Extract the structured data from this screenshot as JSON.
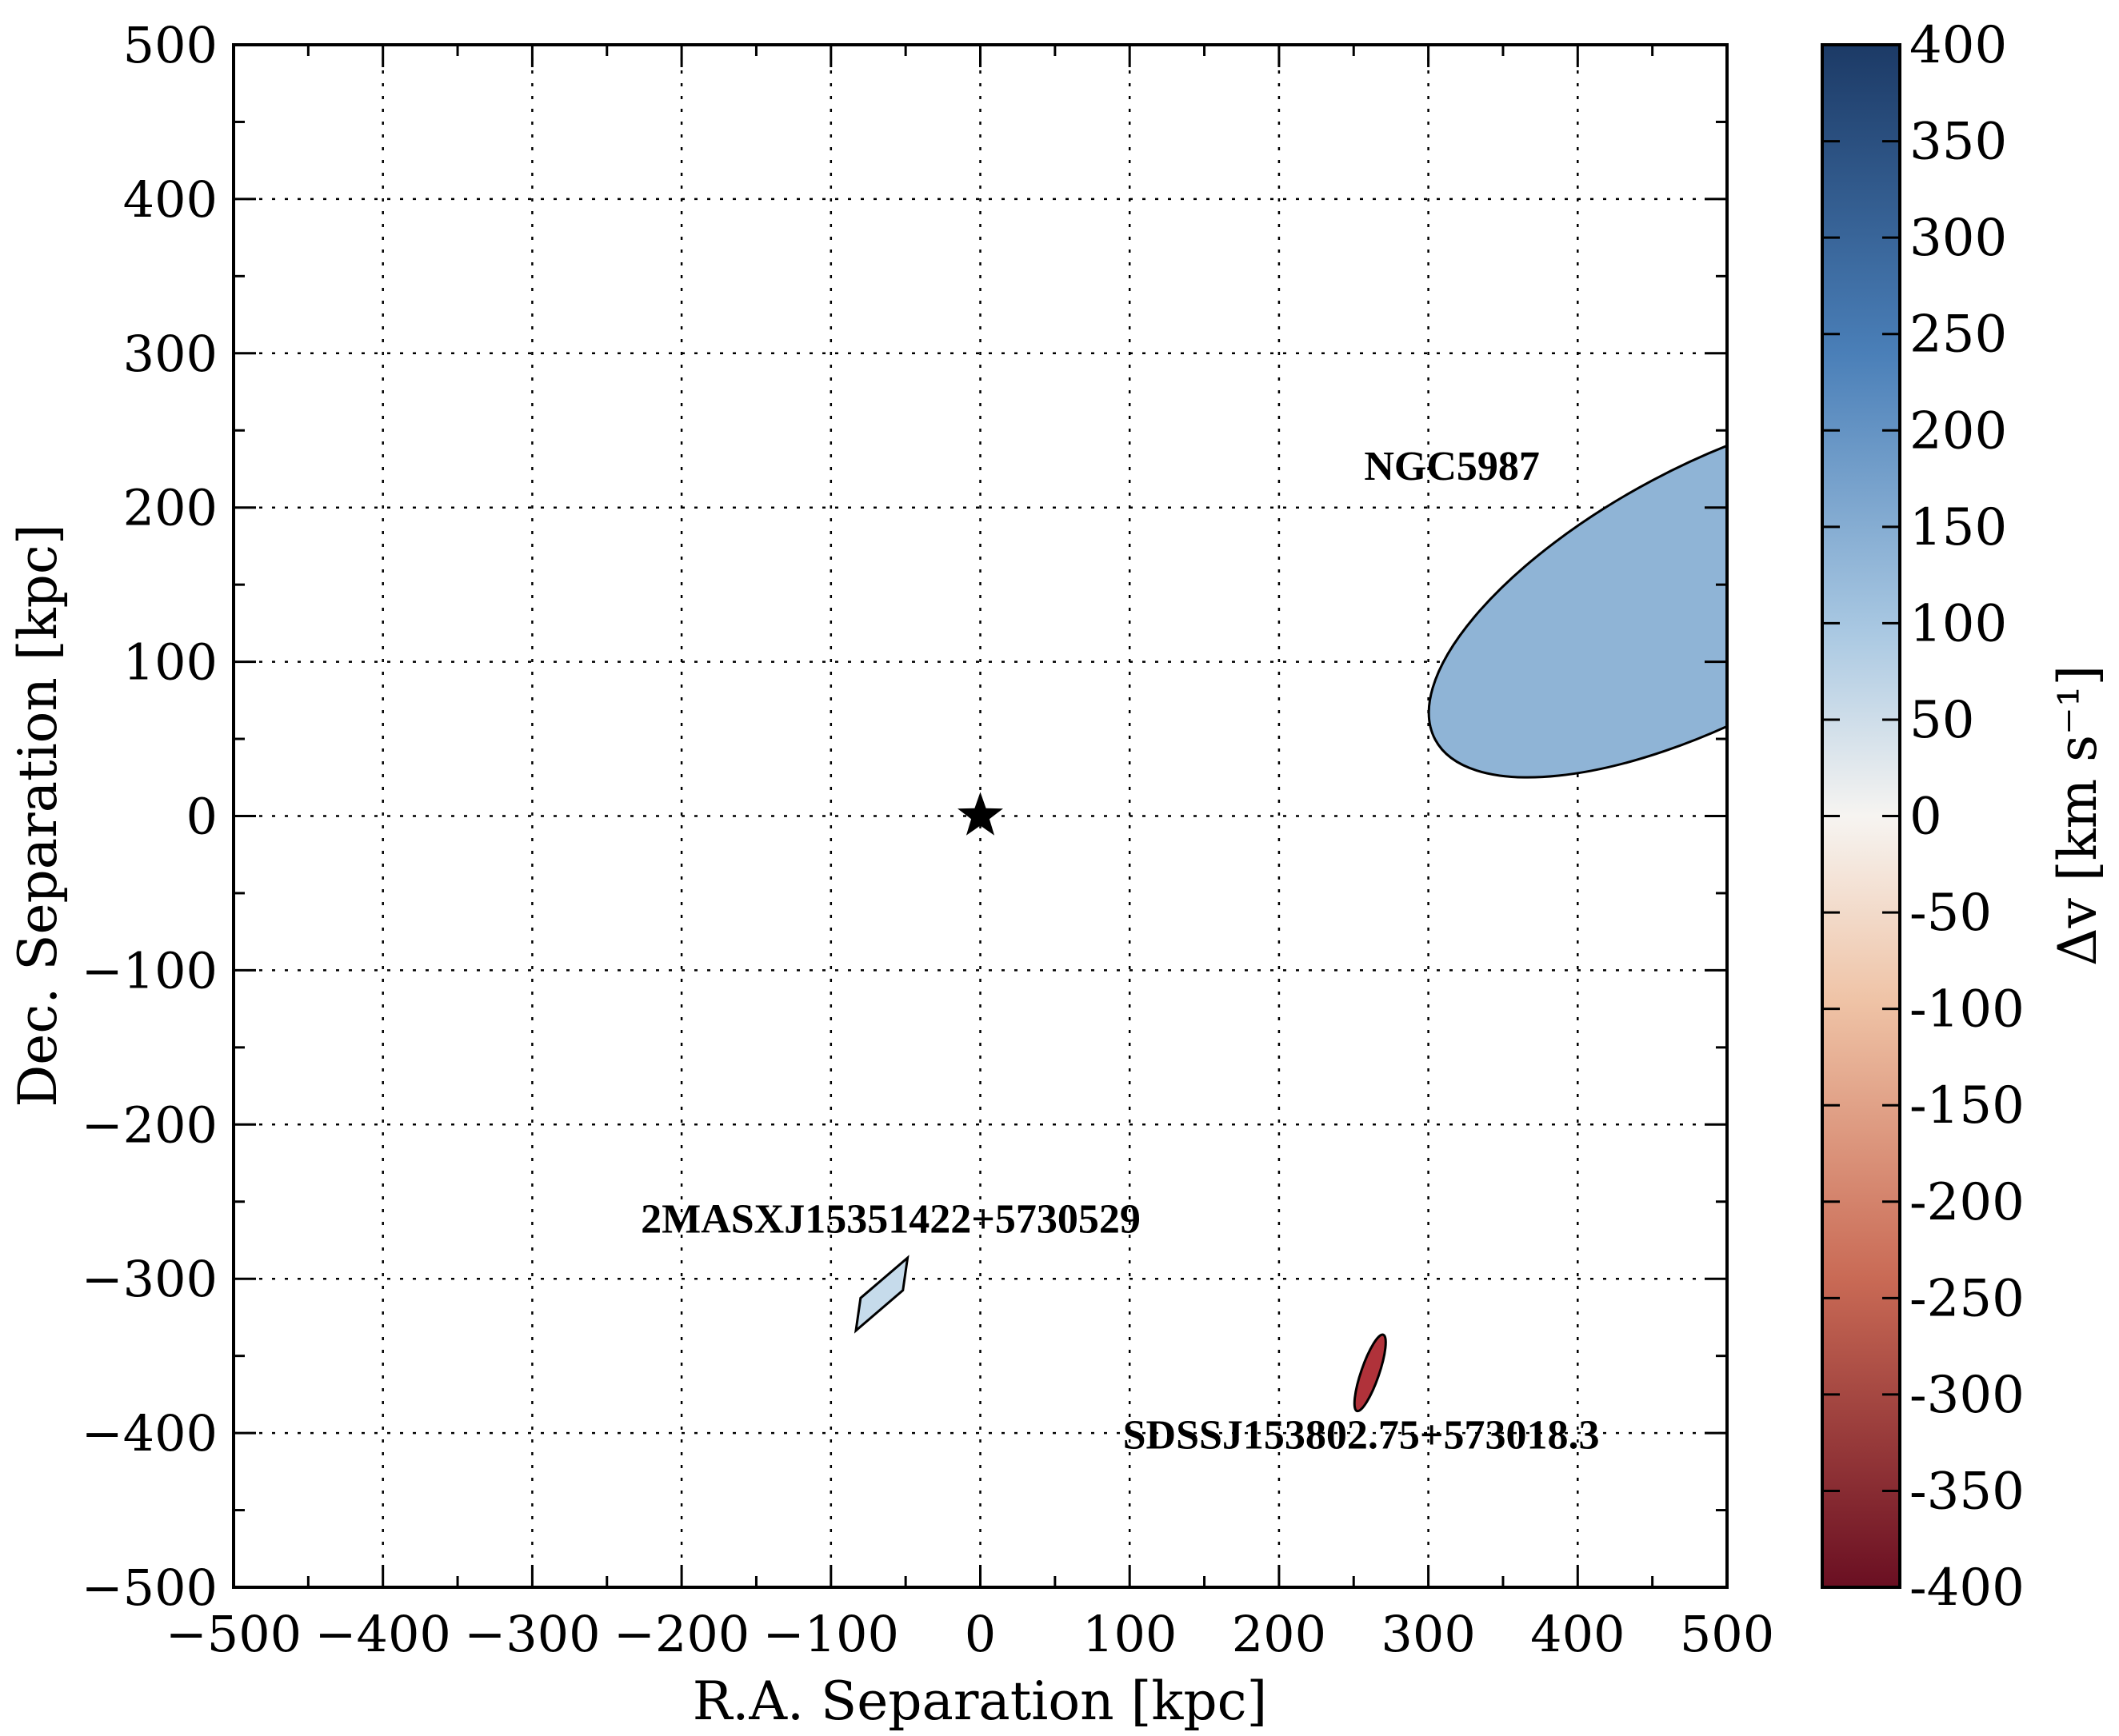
{
  "chart_data": {
    "type": "scatter",
    "xlabel": "R.A. Separation [kpc]",
    "ylabel": "Dec. Separation [kpc]",
    "xlim": [
      -500,
      500
    ],
    "ylim": [
      -500,
      500
    ],
    "xticks": [
      -500,
      -400,
      -300,
      -200,
      -100,
      0,
      100,
      200,
      300,
      400,
      500
    ],
    "yticks": [
      -500,
      -400,
      -300,
      -200,
      -100,
      0,
      100,
      200,
      300,
      400,
      500
    ],
    "xtick_labels": [
      "−500",
      "−400",
      "−300",
      "−200",
      "−100",
      "0",
      "100",
      "200",
      "300",
      "400",
      "500"
    ],
    "ytick_labels": [
      "−500",
      "−400",
      "−300",
      "−200",
      "−100",
      "0",
      "100",
      "200",
      "300",
      "400",
      "500"
    ],
    "grid": true,
    "center_marker": {
      "x": 0,
      "y": 0,
      "shape": "star",
      "color": "#000000"
    },
    "galaxies": [
      {
        "name": "NGC5987",
        "x": 490,
        "y": 145,
        "semi_major": 210,
        "semi_minor": 85,
        "angle_deg": 28,
        "dv": 200,
        "color": "#8fb4d6"
      },
      {
        "name": "2MASXJ15351422+5730529",
        "x": -66,
        "y": -310,
        "semi_major": 30,
        "semi_minor": 10,
        "angle_deg": 58,
        "dv": 100,
        "color": "#c6dbeb",
        "shape": "parallelogram"
      },
      {
        "name": "SDSSJ153802.75+573018.3",
        "x": 261,
        "y": -361,
        "semi_major": 27,
        "semi_minor": 6,
        "angle_deg": 71,
        "dv": -300,
        "color": "#b0323a"
      }
    ],
    "colorbar": {
      "label": "Δv [km s⁻¹]",
      "range": [
        -400,
        400
      ],
      "ticks": [
        400,
        350,
        300,
        250,
        200,
        150,
        100,
        50,
        0,
        -50,
        -100,
        -150,
        -200,
        -250,
        -300,
        -350,
        -400
      ],
      "tick_labels": [
        "400",
        "350",
        "300",
        "250",
        "200",
        "150",
        "100",
        "50",
        "0",
        "-50",
        "-100",
        "-150",
        "-200",
        "-250",
        "-300",
        "-350",
        "-400"
      ],
      "colormap": "RdBu",
      "colors": {
        "top": "#1c3a66",
        "upper": "#4a7fb8",
        "mid_upper": "#a9c8e2",
        "center": "#f6f4f1",
        "mid_lower": "#efc3a6",
        "lower": "#c96a55",
        "bottom": "#6a0f22"
      }
    }
  }
}
